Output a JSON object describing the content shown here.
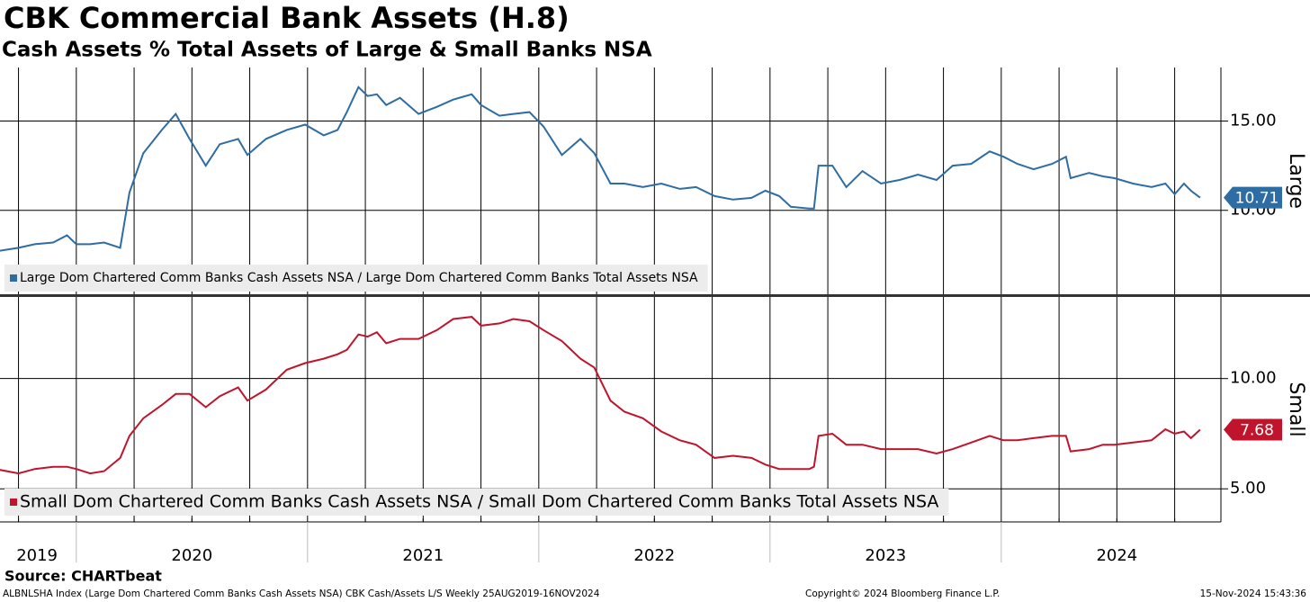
{
  "header": {
    "title": "CBK Commercial Bank Assets (H.8)",
    "subtitle": "Cash Assets % Total Assets of Large & Small Banks NSA"
  },
  "chart_data": [
    {
      "type": "line",
      "panel_label": "Large",
      "x": [
        2019.65,
        2019.75,
        2019.82,
        2019.9,
        2019.96,
        2020.0,
        2020.06,
        2020.12,
        2020.19,
        2020.23,
        2020.29,
        2020.37,
        2020.43,
        2020.49,
        2020.56,
        2020.62,
        2020.7,
        2020.74,
        2020.82,
        2020.91,
        2020.99,
        2021.07,
        2021.13,
        2021.17,
        2021.22,
        2021.26,
        2021.3,
        2021.34,
        2021.4,
        2021.48,
        2021.56,
        2021.63,
        2021.71,
        2021.75,
        2021.83,
        2021.89,
        2021.96,
        2022.02,
        2022.1,
        2022.18,
        2022.24,
        2022.31,
        2022.37,
        2022.45,
        2022.53,
        2022.61,
        2022.68,
        2022.76,
        2022.84,
        2022.92,
        2022.98,
        2023.04,
        2023.09,
        2023.17,
        2023.19,
        2023.21,
        2023.27,
        2023.33,
        2023.4,
        2023.48,
        2023.56,
        2023.64,
        2023.72,
        2023.79,
        2023.87,
        2023.95,
        2024.01,
        2024.07,
        2024.14,
        2024.22,
        2024.28,
        2024.3,
        2024.38,
        2024.44,
        2024.49,
        2024.57,
        2024.65,
        2024.71,
        2024.75,
        2024.79,
        2024.82,
        2024.86
      ],
      "series": [
        {
          "name": "Large Dom Chartered Comm Banks Cash Assets NSA / Large Dom Chartered Comm Banks Total Assets NSA",
          "color": "#2e6ca4",
          "values": [
            7.7,
            7.9,
            8.1,
            8.2,
            8.6,
            8.1,
            8.1,
            8.2,
            7.9,
            11.0,
            13.2,
            14.5,
            15.4,
            14.0,
            12.5,
            13.7,
            14.0,
            13.1,
            14.0,
            14.5,
            14.8,
            14.2,
            14.5,
            15.5,
            16.9,
            16.4,
            16.5,
            15.9,
            16.3,
            15.4,
            15.8,
            16.2,
            16.5,
            15.9,
            15.3,
            15.4,
            15.5,
            14.7,
            13.1,
            14.0,
            13.2,
            11.5,
            11.5,
            11.3,
            11.5,
            11.2,
            11.3,
            10.8,
            10.6,
            10.7,
            11.1,
            10.8,
            10.2,
            10.1,
            10.1,
            12.5,
            12.5,
            11.3,
            12.2,
            11.5,
            11.7,
            12.0,
            11.7,
            12.5,
            12.6,
            13.3,
            13.0,
            12.6,
            12.3,
            12.6,
            13.0,
            11.8,
            12.1,
            11.9,
            11.8,
            11.5,
            11.3,
            11.5,
            10.9,
            11.5,
            11.1,
            10.71
          ]
        }
      ],
      "xlim": [
        2019.67,
        2024.95
      ],
      "ylim": [
        5.3,
        18.0
      ],
      "yticks": [
        {
          "value": 10,
          "label": "10.00"
        },
        {
          "value": 15,
          "label": "15.00"
        }
      ],
      "xgrid": [
        2019.75,
        2020,
        2020.25,
        2020.5,
        2020.75,
        2021,
        2021.25,
        2021.5,
        2021.75,
        2022,
        2022.25,
        2022.5,
        2022.75,
        2023,
        2023.25,
        2023.5,
        2023.75,
        2024,
        2024.25,
        2024.5,
        2024.75
      ],
      "grid": true
    },
    {
      "type": "line",
      "panel_label": "Small",
      "x": [
        2019.65,
        2019.75,
        2019.82,
        2019.9,
        2019.96,
        2020.0,
        2020.06,
        2020.12,
        2020.19,
        2020.23,
        2020.29,
        2020.37,
        2020.43,
        2020.49,
        2020.56,
        2020.62,
        2020.7,
        2020.74,
        2020.82,
        2020.91,
        2020.99,
        2021.07,
        2021.13,
        2021.17,
        2021.22,
        2021.26,
        2021.3,
        2021.34,
        2021.4,
        2021.48,
        2021.56,
        2021.63,
        2021.71,
        2021.75,
        2021.83,
        2021.89,
        2021.96,
        2022.02,
        2022.1,
        2022.18,
        2022.24,
        2022.31,
        2022.37,
        2022.45,
        2022.53,
        2022.61,
        2022.68,
        2022.76,
        2022.84,
        2022.92,
        2022.98,
        2023.04,
        2023.09,
        2023.17,
        2023.19,
        2023.21,
        2023.27,
        2023.33,
        2023.4,
        2023.48,
        2023.56,
        2023.64,
        2023.72,
        2023.79,
        2023.87,
        2023.95,
        2024.01,
        2024.07,
        2024.14,
        2024.22,
        2024.28,
        2024.3,
        2024.38,
        2024.44,
        2024.49,
        2024.57,
        2024.65,
        2024.71,
        2024.75,
        2024.79,
        2024.82,
        2024.86
      ],
      "series": [
        {
          "name": "Small Dom Chartered Comm Banks Cash Assets NSA / Small Dom Chartered Comm Banks Total Assets NSA",
          "color": "#c0142c",
          "values": [
            5.9,
            5.7,
            5.9,
            6.0,
            6.0,
            5.9,
            5.7,
            5.8,
            6.4,
            7.4,
            8.2,
            8.8,
            9.3,
            9.3,
            8.7,
            9.2,
            9.6,
            9.0,
            9.5,
            10.4,
            10.7,
            10.9,
            11.1,
            11.3,
            12.0,
            11.9,
            12.1,
            11.6,
            11.8,
            11.8,
            12.2,
            12.7,
            12.8,
            12.4,
            12.5,
            12.7,
            12.6,
            12.2,
            11.7,
            10.9,
            10.5,
            9.0,
            8.5,
            8.2,
            7.6,
            7.2,
            7.0,
            6.4,
            6.5,
            6.4,
            6.1,
            5.9,
            5.9,
            5.9,
            6.0,
            7.4,
            7.5,
            7.0,
            7.0,
            6.8,
            6.8,
            6.8,
            6.6,
            6.8,
            7.1,
            7.4,
            7.2,
            7.2,
            7.3,
            7.4,
            7.4,
            6.7,
            6.8,
            7.0,
            7.0,
            7.1,
            7.2,
            7.7,
            7.5,
            7.6,
            7.3,
            7.68
          ]
        }
      ],
      "xlim": [
        2019.67,
        2024.95
      ],
      "ylim": [
        3.5,
        13.7
      ],
      "yticks": [
        {
          "value": 5,
          "label": "5.00"
        },
        {
          "value": 10,
          "label": "10.00"
        }
      ],
      "xgrid": [
        2019.75,
        2020,
        2020.25,
        2020.5,
        2020.75,
        2021,
        2021.25,
        2021.5,
        2021.75,
        2022,
        2022.25,
        2022.5,
        2022.75,
        2023,
        2023.25,
        2023.5,
        2023.75,
        2024,
        2024.25,
        2024.5,
        2024.75
      ],
      "xticks": [
        {
          "value": 2019.83,
          "label": "2019"
        },
        {
          "value": 2020.5,
          "label": "2020"
        },
        {
          "value": 2021.5,
          "label": "2021"
        },
        {
          "value": 2022.5,
          "label": "2022"
        },
        {
          "value": 2023.5,
          "label": "2023"
        },
        {
          "value": 2024.5,
          "label": "2024"
        }
      ],
      "grid": true
    }
  ],
  "footer": {
    "source": "Source: CHARTbeat",
    "description": "ALBNLSHA Index (Large Dom Chartered Comm Banks Cash Assets NSA) CBK Cash/Assets L/S  Weekly 25AUG2019-16NOV2024",
    "copyright": "Copyright© 2024 Bloomberg Finance L.P.",
    "timestamp": "15-Nov-2024 15:43:36"
  }
}
